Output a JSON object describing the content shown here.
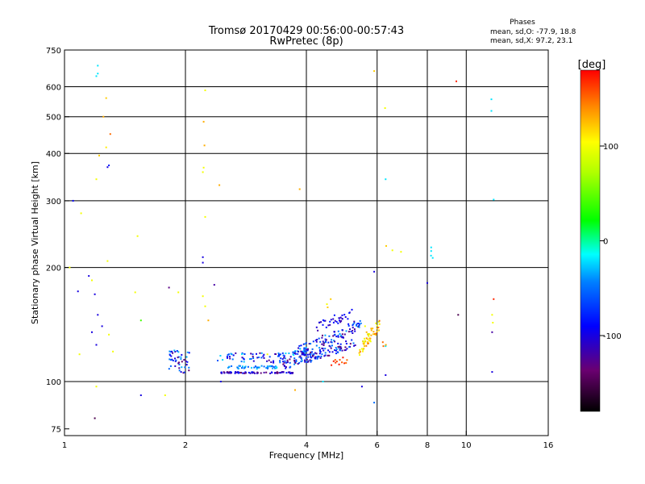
{
  "chart_data": {
    "type": "scatter",
    "title": "Tromsø 20170429 00:56:00-00:57:43",
    "subtitle": "RwPretec (8p)",
    "xlabel": "Frequency [MHz]",
    "ylabel": "Stationary phase Virtual Height [km]",
    "xscale": "log2",
    "yscale": "log",
    "xlim": [
      1,
      16
    ],
    "ylim": [
      72,
      750
    ],
    "x_ticks": [
      1,
      2,
      4,
      6,
      8,
      10,
      16
    ],
    "y_ticks": [
      75,
      100,
      200,
      300,
      400,
      500,
      600,
      750
    ],
    "x_gridlines": [
      2,
      4,
      6,
      8,
      10
    ],
    "y_gridlines": [
      100,
      200,
      300,
      400,
      500,
      600
    ],
    "stats": {
      "heading": "Phases",
      "line1": "mean, sd,O: -77.9, 18.8",
      "line2": "mean, sd,X:  97.2, 23.1"
    },
    "colorbar": {
      "label": "[deg]",
      "min": -180,
      "max": 180,
      "ticks": [
        -100,
        0,
        100
      ]
    },
    "points": [
      [
        1.08,
        173,
        -100
      ],
      [
        1.15,
        190,
        -100
      ],
      [
        1.17,
        185,
        100
      ],
      [
        1.19,
        170,
        -100
      ],
      [
        1.21,
        150,
        -100
      ],
      [
        1.24,
        140,
        -100
      ],
      [
        1.17,
        135,
        -100
      ],
      [
        1.2,
        125,
        -100
      ],
      [
        1.29,
        133,
        100
      ],
      [
        1.32,
        120,
        100
      ],
      [
        1.09,
        118,
        100
      ],
      [
        1.19,
        80,
        -150
      ],
      [
        1.2,
        97,
        100
      ],
      [
        1.21,
        682,
        -20
      ],
      [
        1.21,
        650,
        -20
      ],
      [
        1.2,
        640,
        -20
      ],
      [
        1.27,
        560,
        120
      ],
      [
        1.25,
        500,
        130
      ],
      [
        1.3,
        450,
        150
      ],
      [
        1.27,
        415,
        110
      ],
      [
        1.22,
        395,
        120
      ],
      [
        1.29,
        372,
        -80
      ],
      [
        1.28,
        368,
        -100
      ],
      [
        1.2,
        342,
        100
      ],
      [
        1.05,
        300,
        -90
      ],
      [
        1.1,
        278,
        100
      ],
      [
        1.28,
        208,
        100
      ],
      [
        1.03,
        200,
        100
      ],
      [
        1.52,
        242,
        100
      ],
      [
        1.5,
        172,
        100
      ],
      [
        1.55,
        145,
        40
      ],
      [
        1.55,
        92,
        -100
      ],
      [
        1.78,
        92,
        100
      ],
      [
        1.82,
        177,
        -130
      ],
      [
        1.92,
        172,
        100
      ],
      [
        1.85,
        120,
        -100
      ],
      [
        2.24,
        587,
        100
      ],
      [
        2.22,
        485,
        130
      ],
      [
        2.23,
        420,
        130
      ],
      [
        2.22,
        367,
        100
      ],
      [
        2.21,
        357,
        100
      ],
      [
        2.24,
        272,
        100
      ],
      [
        2.21,
        213,
        -100
      ],
      [
        2.21,
        206,
        -100
      ],
      [
        2.43,
        330,
        130
      ],
      [
        2.36,
        180,
        -120
      ],
      [
        2.21,
        168,
        100
      ],
      [
        2.24,
        158,
        100
      ],
      [
        2.28,
        145,
        130
      ],
      [
        2.45,
        100,
        -100
      ],
      [
        3.2,
        118,
        100
      ],
      [
        3.85,
        322,
        130
      ],
      [
        3.75,
        95,
        130
      ],
      [
        4.4,
        100,
        -20
      ],
      [
        5.9,
        195,
        -100
      ],
      [
        5.9,
        88,
        -50
      ],
      [
        5.9,
        660,
        120
      ],
      [
        6.28,
        527,
        100
      ],
      [
        6.3,
        342,
        -20
      ],
      [
        6.32,
        228,
        120
      ],
      [
        6.55,
        222,
        100
      ],
      [
        6.88,
        220,
        100
      ],
      [
        6.3,
        104,
        -100
      ],
      [
        6.3,
        124,
        -20
      ],
      [
        6.31,
        125,
        130
      ],
      [
        5.5,
        97,
        -100
      ],
      [
        8.0,
        182,
        -100
      ],
      [
        8.18,
        226,
        -20
      ],
      [
        8.18,
        221,
        -20
      ],
      [
        8.17,
        215,
        -20
      ],
      [
        8.25,
        212,
        -20
      ],
      [
        9.45,
        620,
        170
      ],
      [
        9.55,
        150,
        -150
      ],
      [
        11.55,
        556,
        -20
      ],
      [
        11.55,
        518,
        -20
      ],
      [
        11.7,
        302,
        -20
      ],
      [
        11.7,
        165,
        170
      ],
      [
        11.6,
        150,
        100
      ],
      [
        11.65,
        143,
        100
      ],
      [
        11.6,
        135,
        -120
      ],
      [
        11.6,
        106,
        -100
      ],
      [
        4.5,
        160,
        100
      ],
      [
        4.52,
        157,
        120
      ],
      [
        4.6,
        165,
        120
      ],
      [
        5.6,
        140,
        100
      ],
      [
        5.65,
        135,
        130
      ],
      [
        5.7,
        133,
        120
      ],
      [
        5.6,
        128,
        100
      ],
      [
        5.8,
        138,
        130
      ],
      [
        5.75,
        130,
        130
      ],
      [
        5.58,
        124,
        120
      ],
      [
        5.5,
        122,
        100
      ],
      [
        5.68,
        127,
        120
      ],
      [
        6.2,
        127,
        150
      ],
      [
        6.22,
        124,
        150
      ],
      [
        5.02,
        112,
        150
      ],
      [
        5.05,
        114,
        150
      ]
    ],
    "clusters": [
      {
        "f0": 1.82,
        "f1": 2.05,
        "h0": 105,
        "h1": 121,
        "hslope": 0,
        "n": 45,
        "pmin": -140,
        "pmax": -30,
        "spread": 0.03
      },
      {
        "f0": 2.45,
        "f1": 3.7,
        "h0": 105,
        "h1": 106,
        "hslope": 0,
        "n": 80,
        "pmin": -140,
        "pmax": -80,
        "spread": 0.008
      },
      {
        "f0": 2.5,
        "f1": 3.4,
        "h0": 108,
        "h1": 110,
        "hslope": 0,
        "n": 45,
        "pmin": -60,
        "pmax": -20,
        "spread": 0.012
      },
      {
        "f0": 2.4,
        "f1": 4.2,
        "h0": 112,
        "h1": 119,
        "hslope": 0,
        "n": 90,
        "pmin": -130,
        "pmax": -20,
        "spread": 0.025
      },
      {
        "f0": 3.5,
        "f1": 5.3,
        "h0": 110,
        "h1": 127,
        "hslope": 1,
        "n": 110,
        "pmin": -140,
        "pmax": -40,
        "spread": 0.03
      },
      {
        "f0": 3.7,
        "f1": 5.5,
        "h0": 118,
        "h1": 142,
        "hslope": 1,
        "n": 110,
        "pmin": -140,
        "pmax": -30,
        "spread": 0.035
      },
      {
        "f0": 4.2,
        "f1": 5.2,
        "h0": 138,
        "h1": 152,
        "hslope": 1,
        "n": 35,
        "pmin": -120,
        "pmax": -80,
        "spread": 0.03
      },
      {
        "f0": 5.4,
        "f1": 6.1,
        "h0": 120,
        "h1": 142,
        "hslope": 1,
        "n": 45,
        "pmin": 80,
        "pmax": 150,
        "spread": 0.035
      },
      {
        "f0": 4.6,
        "f1": 5.0,
        "h0": 110,
        "h1": 116,
        "hslope": 0,
        "n": 10,
        "pmin": 150,
        "pmax": 175,
        "spread": 0.02
      }
    ]
  }
}
